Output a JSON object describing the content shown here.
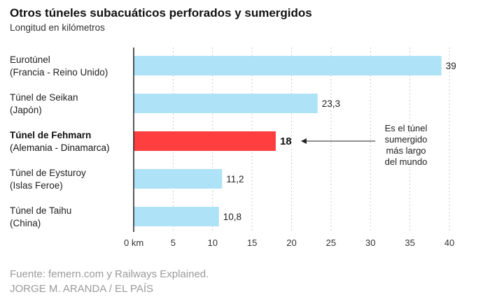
{
  "chart_data": {
    "type": "bar",
    "orientation": "horizontal",
    "title": "Otros túneles subacuáticos perforados y sumergidos",
    "subtitle": "Longitud en kilómetros",
    "categories": [
      [
        "Eurotúnel",
        "(Francia - Reino Unido)"
      ],
      [
        "Túnel de Seikan",
        "(Japón)"
      ],
      [
        "Túnel de Fehmarn",
        "(Alemania - Dinamarca)"
      ],
      [
        "Túnel de Eysturoy",
        "(Islas Feroe)"
      ],
      [
        "Túnel de Taihu",
        "(China)"
      ]
    ],
    "values": [
      39,
      23.3,
      18,
      11.2,
      10.8
    ],
    "value_labels": [
      "39",
      "23,3",
      "18",
      "11,2",
      "10,8"
    ],
    "highlight_index": 2,
    "colors": {
      "bar": "#aee3f7",
      "highlight": "#ff3f3f",
      "axis": "#222222",
      "grid": "#cccccc"
    },
    "xlim": [
      0,
      40
    ],
    "xticks": [
      0,
      5,
      10,
      15,
      20,
      25,
      30,
      35,
      40
    ],
    "xtick_labels": [
      "0 km",
      "5",
      "10",
      "15",
      "20",
      "25",
      "30",
      "35",
      "40"
    ],
    "grid": true,
    "annotation": {
      "target_index": 2,
      "lines": [
        "Es el túnel",
        "sumergido",
        "más largo",
        "del mundo"
      ]
    }
  },
  "source": "Fuente: femern.com y Railways Explained.",
  "credit": "JORGE M. ARANDA / EL PAÍS"
}
